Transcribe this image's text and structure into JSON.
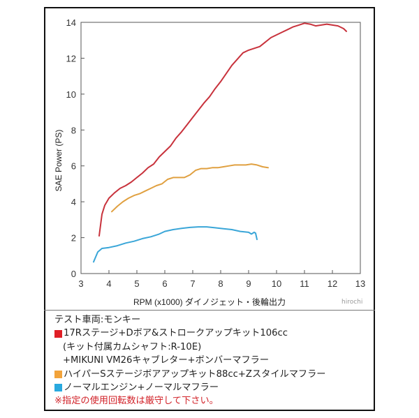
{
  "chart_data": {
    "type": "line",
    "xlabel": "RPM (x1000) ダイノジェット・後輪出力",
    "ylabel": "SAE Power (PS)",
    "xlim": [
      3,
      13
    ],
    "ylim": [
      0,
      14
    ],
    "x_ticks": [
      "3",
      "4",
      "5",
      "6",
      "7",
      "8",
      "9",
      "10",
      "11",
      "12",
      "13"
    ],
    "y_ticks": [
      "0",
      "2",
      "4",
      "6",
      "8",
      "10",
      "12",
      "14"
    ],
    "grid": false,
    "series": [
      {
        "color": "#c8323c",
        "x": [
          3.65,
          3.75,
          3.85,
          4.0,
          4.2,
          4.4,
          4.6,
          4.8,
          5.0,
          5.2,
          5.4,
          5.6,
          5.8,
          6.0,
          6.2,
          6.4,
          6.6,
          6.8,
          7.0,
          7.2,
          7.4,
          7.6,
          7.8,
          8.0,
          8.2,
          8.4,
          8.6,
          8.8,
          9.0,
          9.2,
          9.4,
          9.6,
          9.8,
          10.0,
          10.2,
          10.4,
          10.6,
          10.8,
          11.0,
          11.2,
          11.4,
          11.6,
          11.8,
          12.0,
          12.2,
          12.4,
          12.5
        ],
        "y": [
          2.1,
          3.3,
          3.8,
          4.2,
          4.5,
          4.75,
          4.9,
          5.1,
          5.35,
          5.6,
          5.9,
          6.1,
          6.5,
          6.8,
          7.1,
          7.55,
          7.9,
          8.3,
          8.7,
          9.1,
          9.5,
          9.85,
          10.3,
          10.7,
          11.15,
          11.6,
          11.95,
          12.3,
          12.45,
          12.55,
          12.65,
          12.9,
          13.15,
          13.3,
          13.45,
          13.6,
          13.75,
          13.85,
          13.95,
          13.9,
          13.8,
          13.85,
          13.9,
          13.85,
          13.8,
          13.65,
          13.5
        ]
      },
      {
        "color": "#e0a040",
        "x": [
          4.1,
          4.3,
          4.5,
          4.7,
          4.9,
          5.1,
          5.3,
          5.5,
          5.7,
          5.9,
          6.1,
          6.3,
          6.5,
          6.7,
          6.9,
          7.1,
          7.3,
          7.5,
          7.7,
          7.9,
          8.1,
          8.3,
          8.5,
          8.7,
          8.9,
          9.1,
          9.3,
          9.5,
          9.7
        ],
        "y": [
          3.45,
          3.75,
          4.0,
          4.2,
          4.35,
          4.45,
          4.6,
          4.75,
          4.9,
          5.0,
          5.25,
          5.35,
          5.35,
          5.35,
          5.5,
          5.75,
          5.85,
          5.85,
          5.9,
          5.9,
          5.95,
          6.0,
          6.05,
          6.05,
          6.05,
          6.1,
          6.05,
          5.95,
          5.9
        ]
      },
      {
        "color": "#3aa6d8",
        "x": [
          3.45,
          3.6,
          3.75,
          4.0,
          4.3,
          4.6,
          4.9,
          5.2,
          5.5,
          5.8,
          6.0,
          6.3,
          6.6,
          6.9,
          7.2,
          7.5,
          7.8,
          8.1,
          8.4,
          8.7,
          9.0,
          9.1,
          9.2,
          9.25,
          9.3
        ],
        "y": [
          0.65,
          1.2,
          1.4,
          1.45,
          1.55,
          1.7,
          1.8,
          1.95,
          2.05,
          2.2,
          2.35,
          2.45,
          2.52,
          2.57,
          2.6,
          2.6,
          2.55,
          2.5,
          2.45,
          2.35,
          2.3,
          2.2,
          2.3,
          2.25,
          1.9
        ]
      }
    ]
  },
  "legend": {
    "header": "テスト車両:モンキー",
    "items": [
      {
        "color": "#e01f26",
        "lines": [
          "17Rステージ+Dボア&ストロークアップキット106cc",
          "(キット付属カムシャフト:R-10E)",
          "+MIKUNI VM26キャブレター+ボンバーマフラー"
        ]
      },
      {
        "color": "#f2a33a",
        "lines": [
          "ハイパーSステージボアアップキット88cc+Zスタイルマフラー"
        ]
      },
      {
        "color": "#29a9df",
        "lines": [
          "ノーマルエンジン+ノーマルマフラー"
        ]
      }
    ],
    "note": "※指定の使用回転数は厳守して下さい。"
  },
  "watermark": "hirochi"
}
